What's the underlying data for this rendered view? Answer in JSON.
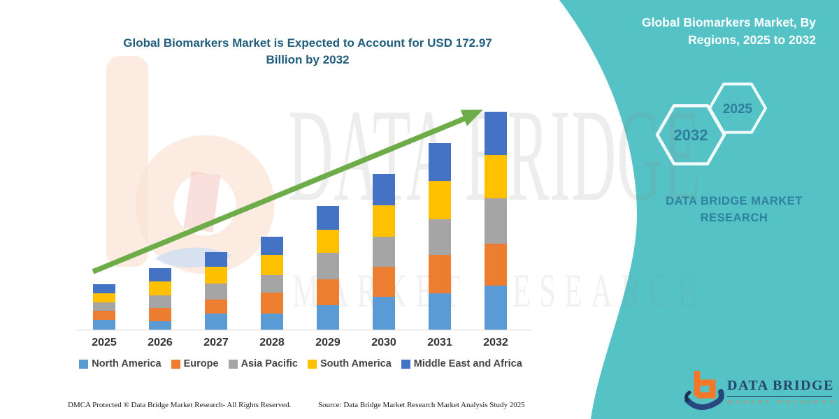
{
  "title": {
    "line1": "Global Biomarkers Market is Expected to Account for USD 172.97",
    "line2": "Billion by 2032"
  },
  "side_panel": {
    "heading_line1": "Global Biomarkers Market, By",
    "heading_line2": "Regions, 2025 to 2032",
    "hexagon_large_label": "2032",
    "hexagon_small_label": "2025",
    "brand_line1": "DATA BRIDGE MARKET",
    "brand_line2": "RESEARCH"
  },
  "watermark": {
    "row1": "DATA BRIDGE",
    "row2": "MARKET RESEARCH"
  },
  "footer": {
    "dmca": "DMCA Protected ® Data Bridge Market Research-  All Rights Reserved.",
    "source": "Source: Data Bridge Market Research  Market Analysis Study 2025"
  },
  "logo": {
    "name": "DATA BRIDGE",
    "sub": "MARKET RESEARCH"
  },
  "colors": {
    "teal_panel": "#55c3c6",
    "title_text": "#1f5c7c",
    "panel_text": "#2e81a0",
    "arrow_green": "#6eac49",
    "logo_navy": "#24456b",
    "logo_orange": "#f4782a"
  },
  "chart_data": {
    "type": "bar",
    "stacked": true,
    "unit": "USD Billion",
    "title": "Global Biomarkers Market is Expected to Account for USD 172.97 Billion by 2032",
    "subtitle": "Global Biomarkers Market, By Regions, 2025 to 2032",
    "categories": [
      "2025",
      "2026",
      "2027",
      "2028",
      "2029",
      "2030",
      "2031",
      "2032"
    ],
    "series": [
      {
        "name": "North America",
        "color": "#5B9BD5",
        "values": [
          7.8,
          6.7,
          12.8,
          12.8,
          19.4,
          26.1,
          28.8,
          34.9
        ]
      },
      {
        "name": "Europe",
        "color": "#ED7D31",
        "values": [
          7.2,
          10.5,
          11.1,
          16.6,
          20.5,
          23.8,
          30.5,
          33.3
        ]
      },
      {
        "name": "Asia Pacific",
        "color": "#A5A5A5",
        "values": [
          6.7,
          10.0,
          12.8,
          13.9,
          21.1,
          23.8,
          28.3,
          36.0
        ]
      },
      {
        "name": "South America",
        "color": "#FFC000",
        "values": [
          7.2,
          11.1,
          13.3,
          16.1,
          18.3,
          25.0,
          30.5,
          34.4
        ]
      },
      {
        "name": "Middle East and Africa",
        "color": "#4472C4",
        "values": [
          7.2,
          10.5,
          11.6,
          14.4,
          18.9,
          25.0,
          29.9,
          34.4
        ]
      }
    ],
    "totals": [
      36.1,
      48.8,
      61.6,
      73.8,
      98.2,
      123.7,
      148.0,
      172.97
    ],
    "annotations": [
      "upward trend arrow from 2025 to 2032"
    ],
    "legend_position": "bottom",
    "axis": {
      "x_visible": true,
      "y_visible": false,
      "gridlines": false
    }
  }
}
